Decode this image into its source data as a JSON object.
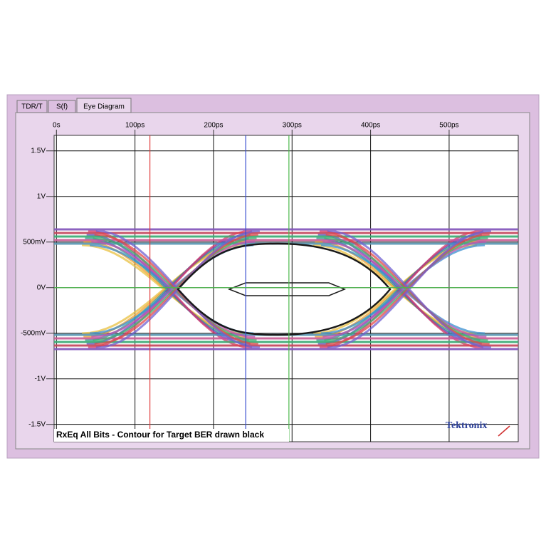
{
  "tabs": [
    "TDR/T",
    "S(f)",
    "Eye Diagram"
  ],
  "chart_data": {
    "type": "eye",
    "xlim": [
      -3,
      588
    ],
    "ylim": [
      -1.69,
      1.67
    ],
    "xticks": [
      {
        "value": 0,
        "label": "0s"
      },
      {
        "value": 100,
        "label": "100ps"
      },
      {
        "value": 200,
        "label": "200ps"
      },
      {
        "value": 300,
        "label": "300ps"
      },
      {
        "value": 400,
        "label": "400ps"
      },
      {
        "value": 500,
        "label": "500ps"
      }
    ],
    "yticks": [
      {
        "value": 1.5,
        "label": "1.5V"
      },
      {
        "value": 1,
        "label": "1V"
      },
      {
        "value": 0.5,
        "label": "500mV"
      },
      {
        "value": 0,
        "label": "0V"
      },
      {
        "value": -0.5,
        "label": "-500mV"
      },
      {
        "value": -1,
        "label": "-1V"
      },
      {
        "value": -1.5,
        "label": "-1.5V"
      }
    ],
    "grid": true,
    "cursors": [
      {
        "color": "#e03a3a",
        "x": 119
      },
      {
        "color": "#3a4ed0",
        "x": 241
      },
      {
        "color": "#4cb84c",
        "x": 296
      },
      {
        "color": "#4cb84c",
        "y": 0
      }
    ],
    "caption": "RxEq All Bits - Contour for Target BER drawn black",
    "brand": "Tektronix"
  }
}
